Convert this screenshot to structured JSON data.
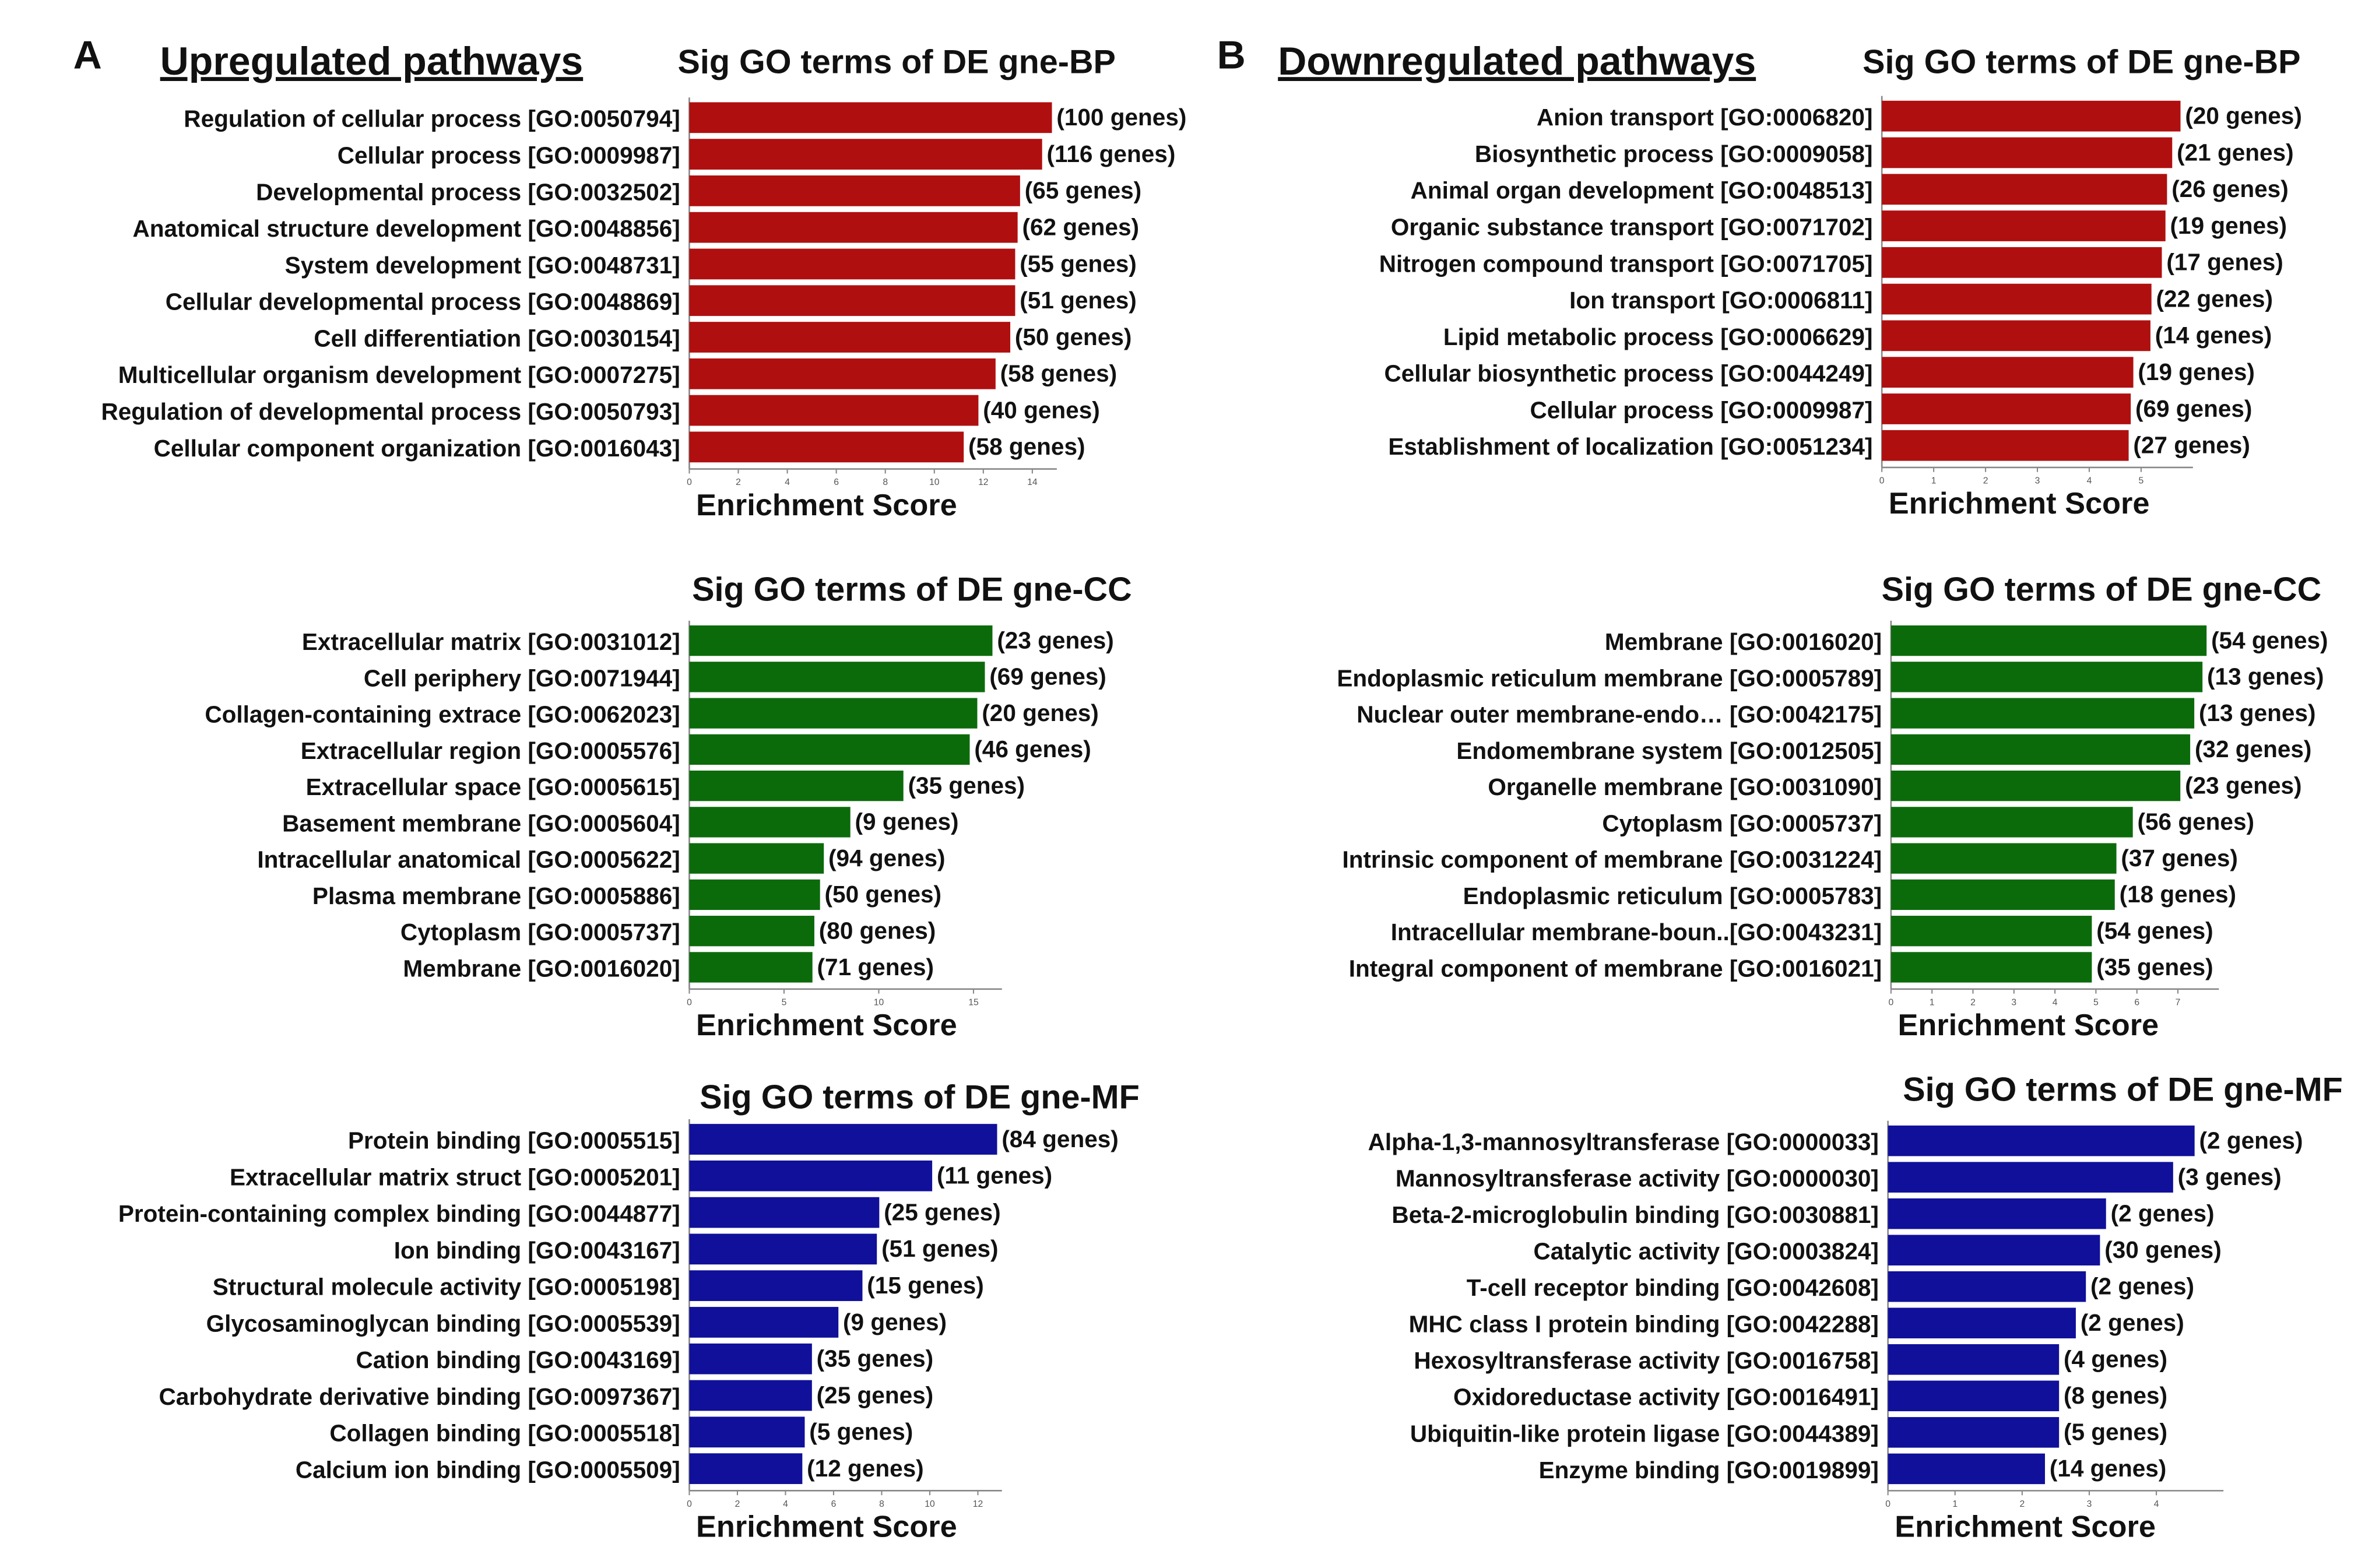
{
  "panels": [
    {
      "letter": "A",
      "heading": "Upregulated pathways"
    },
    {
      "letter": "B",
      "heading": "Downregulated pathways"
    }
  ],
  "chart_data": [
    {
      "type": "bar",
      "title": "Sig GO terms of DE gne-BP",
      "xlabel": "Enrichment Score",
      "color": "#b00f0f",
      "categories": [
        "Regulation of cellular process [GO:0050794]",
        "Cellular process [GO:0009987]",
        "Developmental process [GO:0032502]",
        "Anatomical structure development [GO:0048856]",
        "System development [GO:0048731]",
        "Cellular developmental process [GO:0048869]",
        "Cell differentiation [GO:0030154]",
        "Multicellular organism development [GO:0007275]",
        "Regulation of developmental process [GO:0050793]",
        "Cellular component organization [GO:0016043]"
      ],
      "values": [
        14.8,
        14.4,
        13.5,
        13.4,
        13.3,
        13.3,
        13.1,
        12.5,
        11.8,
        11.2
      ],
      "annotations": [
        "(100 genes)",
        "(116 genes)",
        "(65 genes)",
        "(62 genes)",
        "(55 genes)",
        "(51 genes)",
        "(50 genes)",
        "(58 genes)",
        "(40 genes)",
        "(58 genes)"
      ],
      "xlim": [
        0,
        15
      ],
      "xticks": [
        0,
        2,
        4,
        6,
        8,
        10,
        12,
        14
      ]
    },
    {
      "type": "bar",
      "title": "Sig GO terms of DE gne-CC",
      "xlabel": "Enrichment Score",
      "color": "#0b6b0b",
      "categories": [
        "Extracellular matrix [GO:0031012]",
        "Cell periphery [GO:0071944]",
        "Collagen-containing extrace [GO:0062023]",
        "Extracellular region [GO:0005576]",
        "Extracellular space [GO:0005615]",
        "Basement membrane [GO:0005604]",
        "Intracellular anatomical [GO:0005622]",
        "Plasma membrane [GO:0005886]",
        "Cytoplasm [GO:0005737]",
        "Membrane [GO:0016020]"
      ],
      "values": [
        16.0,
        15.6,
        15.2,
        14.8,
        11.3,
        8.5,
        7.1,
        6.9,
        6.6,
        6.5
      ],
      "annotations": [
        "(23 genes)",
        "(69 genes)",
        "(20 genes)",
        "(46 genes)",
        "(35 genes)",
        "(9 genes)",
        "(94 genes)",
        "(50 genes)",
        "(80 genes)",
        "(71 genes)"
      ],
      "xlim": [
        0,
        16.5
      ],
      "xticks": [
        0,
        5,
        10,
        15
      ]
    },
    {
      "type": "bar",
      "title": "Sig GO terms of DE gne-MF",
      "xlabel": "Enrichment Score",
      "color": "#10109a",
      "categories": [
        "Protein binding [GO:0005515]",
        "Extracellular matrix struct [GO:0005201]",
        "Protein-containing complex binding [GO:0044877]",
        "Ion binding [GO:0043167]",
        "Structural molecule activity [GO:0005198]",
        "Glycosaminoglycan binding [GO:0005539]",
        "Cation binding [GO:0043169]",
        "Carbohydrate derivative binding [GO:0097367]",
        "Collagen binding [GO:0005518]",
        "Calcium ion binding [GO:0005509]"
      ],
      "values": [
        12.8,
        10.1,
        7.9,
        7.8,
        7.2,
        6.2,
        5.1,
        5.1,
        4.8,
        4.7
      ],
      "annotations": [
        "(84 genes)",
        "(11 genes)",
        "(25 genes)",
        "(51 genes)",
        "(15 genes)",
        "(9 genes)",
        "(35 genes)",
        "(25 genes)",
        "(5 genes)",
        "(12 genes)"
      ],
      "xlim": [
        0,
        13
      ],
      "xticks": [
        0,
        2,
        4,
        6,
        8,
        10,
        12
      ]
    },
    {
      "type": "bar",
      "title": "Sig GO terms of DE gne-BP",
      "xlabel": "Enrichment Score",
      "color": "#b00f0f",
      "categories": [
        "Anion transport [GO:0006820]",
        "Biosynthetic process [GO:0009058]",
        "Animal organ development [GO:0048513]",
        "Organic substance transport [GO:0071702]",
        "Nitrogen compound transport [GO:0071705]",
        "Ion transport [GO:0006811]",
        "Lipid metabolic process [GO:0006629]",
        "Cellular biosynthetic process [GO:0044249]",
        "Cellular process [GO:0009987]",
        "Establishment of localization [GO:0051234]"
      ],
      "values": [
        5.76,
        5.6,
        5.5,
        5.47,
        5.4,
        5.2,
        5.18,
        4.85,
        4.8,
        4.76
      ],
      "annotations": [
        "(20 genes)",
        "(21 genes)",
        "(26 genes)",
        "(19 genes)",
        "(17 genes)",
        "(22 genes)",
        "(14 genes)",
        "(19 genes)",
        "(69 genes)",
        "(27 genes)"
      ],
      "xlim": [
        0,
        6
      ],
      "xticks": [
        0,
        1,
        2,
        3,
        4,
        5
      ]
    },
    {
      "type": "bar",
      "title": "Sig GO terms of DE gne-CC",
      "xlabel": "Enrichment Score",
      "color": "#0b6b0b",
      "categories": [
        "Membrane [GO:0016020]",
        "Endoplasmic reticulum membrane [GO:0005789]",
        "Nuclear outer membrane-endo… [GO:0042175]",
        "Endomembrane system [GO:0012505]",
        "Organelle membrane [GO:0031090]",
        "Cytoplasm [GO:0005737]",
        "Intrinsic component of membrane [GO:0031224]",
        "Endoplasmic reticulum [GO:0005783]",
        "Intracellular membrane-boun..[GO:0043231]",
        "Integral component of membrane [GO:0016021]"
      ],
      "values": [
        7.7,
        7.6,
        7.4,
        7.3,
        7.06,
        5.9,
        5.5,
        5.46,
        4.9,
        4.9
      ],
      "annotations": [
        "(54 genes)",
        "(13 genes)",
        "(13 genes)",
        "(32 genes)",
        "(23 genes)",
        "(56 genes)",
        "(37 genes)",
        "(18 genes)",
        "(54 genes)",
        "(35 genes)"
      ],
      "xlim": [
        0,
        8
      ],
      "xticks": [
        0,
        1,
        2,
        3,
        4,
        5,
        6,
        7
      ]
    },
    {
      "type": "bar",
      "title": "Sig GO terms of DE gne-MF",
      "xlabel": "Enrichment Score",
      "color": "#10109a",
      "categories": [
        "Alpha-1,3-mannosyltransferase [GO:0000033]",
        "Mannosyltransferase activity [GO:0000030]",
        "Beta-2-microglobulin binding [GO:0030881]",
        "Catalytic activity [GO:0003824]",
        "T-cell receptor binding [GO:0042608]",
        "MHC class I protein binding [GO:0042288]",
        "Hexosyltransferase activity [GO:0016758]",
        "Oxidoreductase activity [GO:0016491]",
        "Ubiquitin-like protein ligase [GO:0044389]",
        "Enzyme binding [GO:0019899]"
      ],
      "values": [
        4.57,
        4.25,
        3.25,
        3.16,
        2.95,
        2.8,
        2.55,
        2.55,
        2.55,
        2.34
      ],
      "annotations": [
        "(2 genes)",
        "(3 genes)",
        "(2 genes)",
        "(30 genes)",
        "(2 genes)",
        "(2 genes)",
        "(4 genes)",
        "(8 genes)",
        "(5 genes)",
        "(14 genes)"
      ],
      "xlim": [
        0,
        5
      ],
      "xticks": [
        0,
        1,
        2,
        3,
        4
      ]
    }
  ]
}
